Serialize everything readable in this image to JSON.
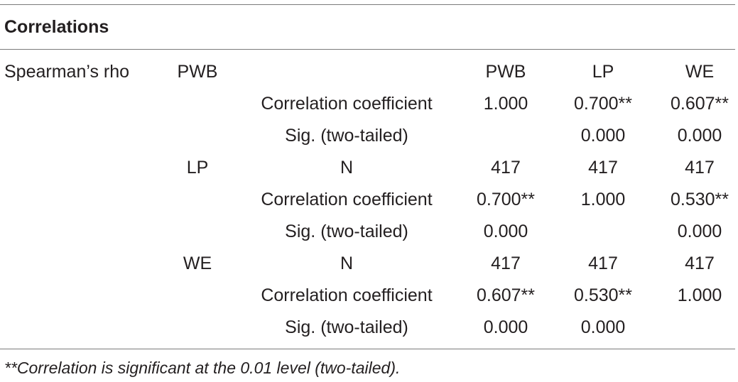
{
  "table": {
    "title": "Correlations",
    "method_label": "Spearman’s rho",
    "column_headers": [
      "PWB",
      "LP",
      "WE"
    ],
    "rows": [
      {
        "variable": "PWB",
        "stat": "",
        "values": [
          "PWB",
          "LP",
          "WE"
        ]
      },
      {
        "variable": "",
        "stat": "Correlation coefficient",
        "values": [
          "1.000",
          "0.700**",
          "0.607**"
        ]
      },
      {
        "variable": "",
        "stat": "Sig. (two-tailed)",
        "values": [
          "",
          "0.000",
          "0.000"
        ]
      },
      {
        "variable": "LP",
        "stat": "N",
        "values": [
          "417",
          "417",
          "417"
        ]
      },
      {
        "variable": "",
        "stat": "Correlation coefficient",
        "values": [
          "0.700**",
          "1.000",
          "0.530**"
        ]
      },
      {
        "variable": "",
        "stat": "Sig. (two-tailed)",
        "values": [
          "0.000",
          "",
          "0.000"
        ]
      },
      {
        "variable": "WE",
        "stat": "N",
        "values": [
          "417",
          "417",
          "417"
        ]
      },
      {
        "variable": "",
        "stat": "Correlation coefficient",
        "values": [
          "0.607**",
          "0.530**",
          "1.000"
        ]
      },
      {
        "variable": "",
        "stat": "Sig. (two-tailed)",
        "values": [
          "0.000",
          "0.000",
          ""
        ]
      }
    ],
    "footnote": "**Correlation is significant at the 0.01 level (two-tailed)."
  }
}
